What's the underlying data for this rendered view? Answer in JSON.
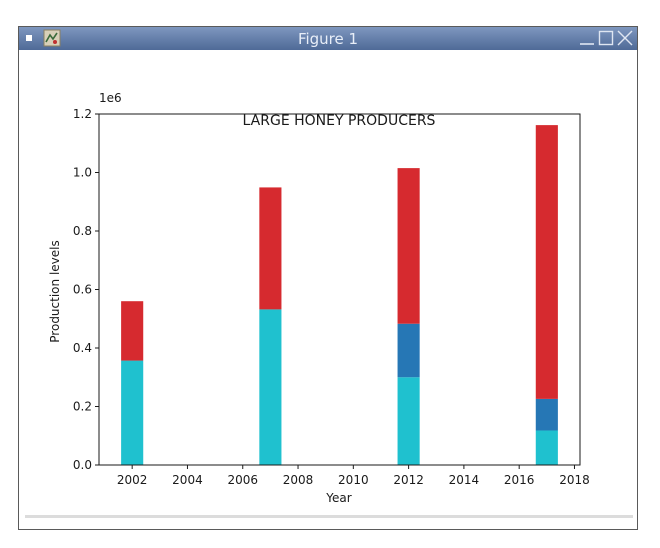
{
  "window": {
    "title": "Figure 1",
    "app_icon": "figure-app-icon",
    "controls": [
      "minimize-icon",
      "maximize-icon",
      "close-icon"
    ]
  },
  "chart_data": {
    "type": "bar",
    "title": "LARGE HONEY PRODUCERS",
    "xlabel": "Year",
    "ylabel": "Production levels",
    "y_offset_label": "1e6",
    "xlim": [
      2000.8,
      2018.2
    ],
    "ylim": [
      0,
      1.2
    ],
    "x_ticks": [
      2002,
      2004,
      2006,
      2008,
      2010,
      2012,
      2014,
      2016,
      2018
    ],
    "y_ticks": [
      "0.0",
      "0.2",
      "0.4",
      "0.6",
      "0.8",
      "1.0",
      "1.2"
    ],
    "bar_width_years": 0.8,
    "grid": false,
    "stacked": true,
    "years": [
      2002,
      2007,
      2012,
      2017
    ],
    "series": [
      {
        "color": "#1fc1cf",
        "values": [
          0.357,
          0.532,
          0.3,
          0.118
        ]
      },
      {
        "color": "#2677b5",
        "values": [
          0,
          0,
          0.183,
          0.108
        ]
      },
      {
        "color": "#d62a2f",
        "values": [
          0.203,
          0.417,
          0.532,
          0.936
        ]
      }
    ]
  }
}
